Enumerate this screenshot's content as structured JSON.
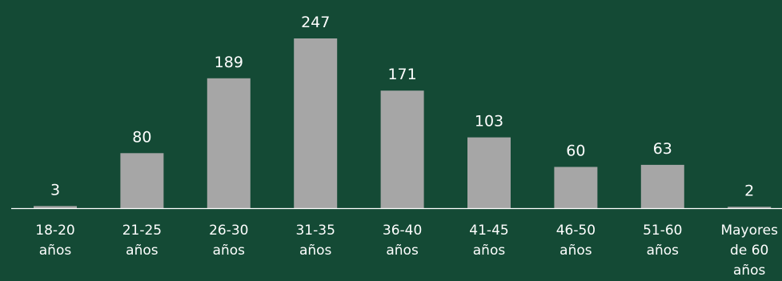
{
  "chart_data": {
    "type": "bar",
    "title": "",
    "xlabel": "",
    "ylabel": "",
    "categories": [
      [
        "18-20",
        "años"
      ],
      [
        "21-25",
        "años"
      ],
      [
        "26-30",
        "años"
      ],
      [
        "31-35",
        "años"
      ],
      [
        "36-40",
        "años"
      ],
      [
        "41-45",
        "años"
      ],
      [
        "46-50",
        "años"
      ],
      [
        "51-60",
        "años"
      ],
      [
        "Mayores",
        "de 60",
        "años"
      ]
    ],
    "values": [
      3,
      80,
      189,
      247,
      171,
      103,
      60,
      63,
      2
    ],
    "ylim": [
      0,
      247
    ],
    "grid": false,
    "legend": "none",
    "colors": {
      "background": "#144a35",
      "bar": "#a6a6a6",
      "text": "#ffffff",
      "axis": "#ffffff"
    }
  }
}
